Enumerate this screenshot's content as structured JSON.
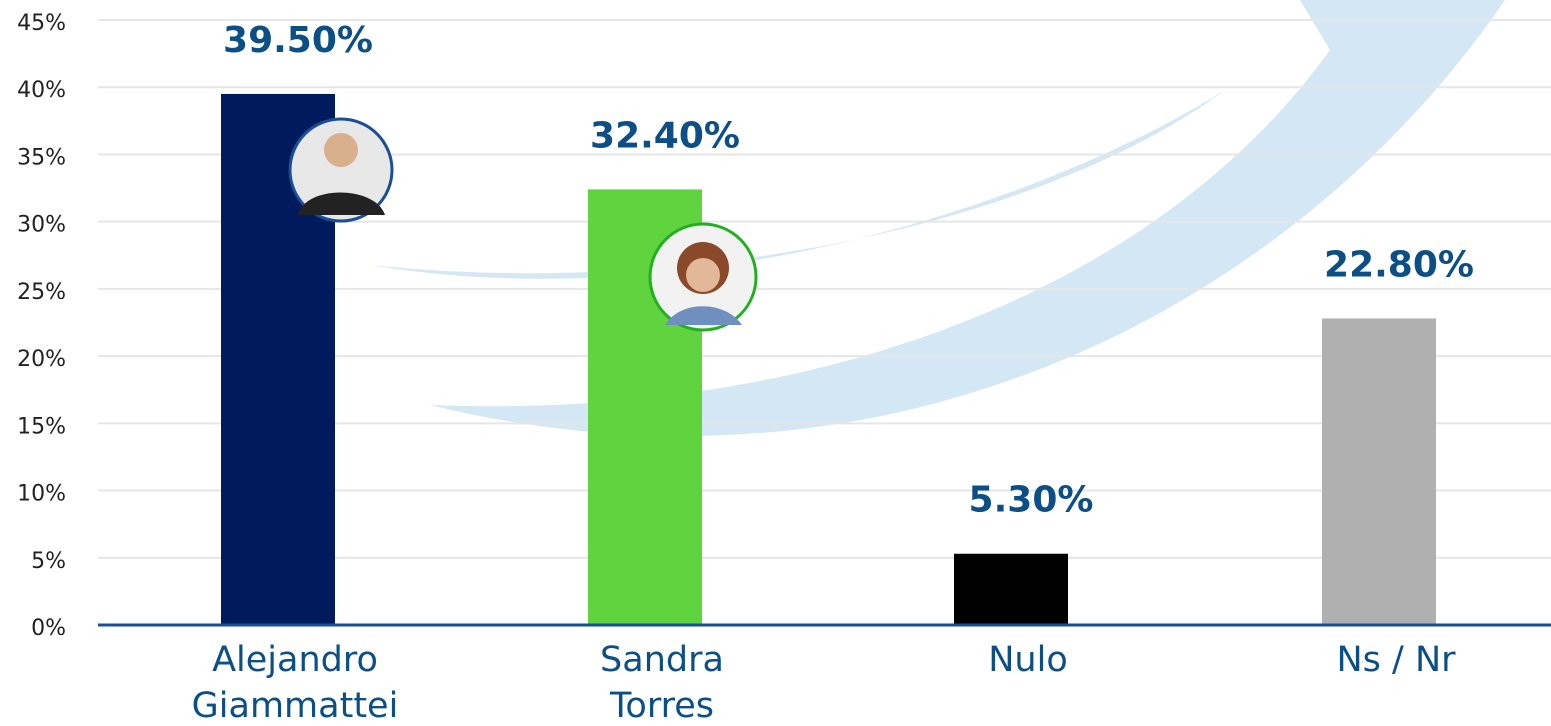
{
  "chart_data": {
    "type": "bar",
    "categories": [
      "Alejandro Giammattei",
      "Sandra Torres",
      "Nulo",
      "Ns / Nr"
    ],
    "values": [
      39.5,
      32.4,
      5.3,
      22.8
    ],
    "value_labels": [
      "39.50%",
      "32.40%",
      "5.30%",
      "22.80%"
    ],
    "colors": [
      "#001a5e",
      "#5fd43f",
      "#000000",
      "#b0b0b0"
    ],
    "ylim": [
      0,
      45
    ],
    "yticks": [
      {
        "value": 0,
        "label": "0%"
      },
      {
        "value": 5,
        "label": "5%"
      },
      {
        "value": 10,
        "label": "10%"
      },
      {
        "value": 15,
        "label": "15%"
      },
      {
        "value": 20,
        "label": "20%"
      },
      {
        "value": 25,
        "label": "25%"
      },
      {
        "value": 30,
        "label": "30%"
      },
      {
        "value": 35,
        "label": "35%"
      },
      {
        "value": 40,
        "label": "40%"
      },
      {
        "value": 45,
        "label": "45%"
      }
    ],
    "grid": true
  }
}
